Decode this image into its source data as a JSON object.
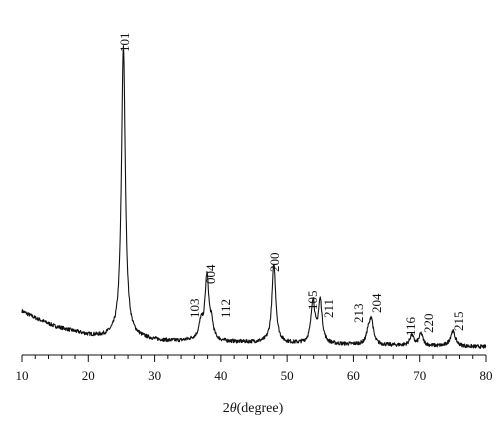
{
  "chart_data": {
    "type": "line",
    "title": "",
    "xlabel_prefix": "2",
    "xlabel_theta": "θ",
    "xlabel_suffix": "(degree)",
    "ylabel": "",
    "xlim": [
      10,
      80
    ],
    "ylim": [
      0,
      100
    ],
    "xticks": [
      10,
      20,
      30,
      40,
      50,
      60,
      70,
      80
    ],
    "xtick_labels": [
      "10",
      "20",
      "30",
      "40",
      "50",
      "60",
      "70",
      "80"
    ],
    "y_axis_shown": false,
    "grid": false,
    "baseline": [
      [
        10,
        12
      ],
      [
        12,
        10
      ],
      [
        15,
        7.5
      ],
      [
        18,
        6
      ],
      [
        20,
        5
      ],
      [
        22,
        4.5
      ],
      [
        25,
        4.5
      ],
      [
        28,
        4
      ],
      [
        30,
        3.5
      ],
      [
        32,
        3.2
      ],
      [
        34,
        3.2
      ],
      [
        36,
        3.5
      ],
      [
        38,
        3.5
      ],
      [
        40,
        3
      ],
      [
        45,
        2.8
      ],
      [
        50,
        2.5
      ],
      [
        55,
        2.2
      ],
      [
        60,
        2.2
      ],
      [
        65,
        2
      ],
      [
        70,
        1.8
      ],
      [
        75,
        1.6
      ],
      [
        80,
        1.5
      ]
    ],
    "peaks": [
      {
        "label": "101",
        "x": 25.3,
        "height": 85.5,
        "width": 0.35
      },
      {
        "label": "103",
        "x": 37.0,
        "height": 4.5,
        "width": 0.35
      },
      {
        "label": "004",
        "x": 37.9,
        "height": 18.5,
        "width": 0.35
      },
      {
        "label": "112",
        "x": 38.6,
        "height": 4.0,
        "width": 0.3
      },
      {
        "label": "200",
        "x": 48.0,
        "height": 23.0,
        "width": 0.35
      },
      {
        "label": "105",
        "x": 53.9,
        "height": 12.5,
        "width": 0.35
      },
      {
        "label": "211",
        "x": 55.0,
        "height": 12.5,
        "width": 0.35
      },
      {
        "label": "213",
        "x": 62.2,
        "height": 3.0,
        "width": 0.3
      },
      {
        "label": "204",
        "x": 62.7,
        "height": 7.5,
        "width": 0.35
      },
      {
        "label": "116",
        "x": 68.8,
        "height": 3.0,
        "width": 0.35
      },
      {
        "label": "220",
        "x": 70.2,
        "height": 3.5,
        "width": 0.35
      },
      {
        "label": "215",
        "x": 75.0,
        "height": 4.5,
        "width": 0.45
      }
    ],
    "line_color": "#111111"
  }
}
